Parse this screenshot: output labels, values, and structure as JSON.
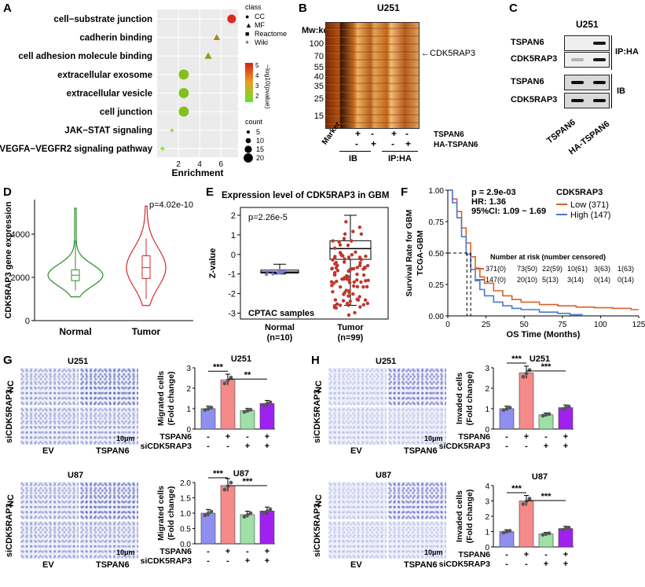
{
  "panels": {
    "A": "A",
    "B": "B",
    "C": "C",
    "D": "D",
    "E": "E",
    "F": "F",
    "G": "G",
    "H": "H"
  },
  "chart_data": [
    {
      "panel": "A",
      "type": "scatter",
      "xlabel": "Enrichment",
      "categories": [
        "cell−substrate junction",
        "cadherin binding",
        "cell adhesion molecule binding",
        "extracellular exosome",
        "extracellular vesicle",
        "cell junction",
        "JAK−STAT signaling",
        "VEGFA−VEGFR2 signaling pathway"
      ],
      "x": [
        7.0,
        5.6,
        4.8,
        2.5,
        2.5,
        2.5,
        1.4,
        0.5
      ],
      "class": [
        "CC",
        "MF",
        "MF",
        "CC",
        "CC",
        "CC",
        "Wiki",
        "Wiki"
      ],
      "count": [
        9,
        6,
        7,
        11,
        11,
        11,
        2,
        4
      ],
      "neg_log10_p": [
        5.6,
        3.0,
        2.4,
        1.5,
        1.5,
        1.5,
        1.2,
        1.0
      ],
      "xticks": [
        "2",
        "4",
        "6"
      ],
      "legend": {
        "class_title": "class",
        "classes": [
          "CC",
          "MF",
          "Reactome",
          "Wiki"
        ],
        "color_title": "−log10(pvalue)",
        "color_ticks": [
          "5",
          "4",
          "3",
          "2"
        ],
        "count_title": "count",
        "count_ticks": [
          "5",
          "10",
          "15",
          "20"
        ]
      }
    },
    {
      "panel": "D",
      "type": "violin",
      "ylabel": "CDK5RAP3 gene expression",
      "categories": [
        "Normal",
        "Tumor"
      ],
      "median": [
        2100,
        2450
      ],
      "q1": [
        1850,
        1950
      ],
      "q3": [
        2350,
        3000
      ],
      "min": [
        1100,
        700
      ],
      "max": [
        5200,
        5300
      ],
      "yticks": [
        "0",
        "2000",
        "4000"
      ],
      "ylim": [
        0,
        5600
      ],
      "annotation": "p=4.02e-10",
      "colors": [
        "#2e8b2e",
        "#d42a2a"
      ]
    },
    {
      "panel": "E",
      "type": "box",
      "title": "Expression level of CDK5RAP3 in GBM",
      "ylabel": "Z-value",
      "categories": [
        "Normal",
        "Tumor"
      ],
      "n_labels": [
        "(n=10)",
        "(n=99)"
      ],
      "median": [
        -0.9,
        0.3
      ],
      "q1": [
        -0.95,
        -0.25
      ],
      "q3": [
        -0.8,
        0.7
      ],
      "whisker_low": [
        -1.0,
        -2.6
      ],
      "whisker_high": [
        -0.5,
        2.0
      ],
      "yticks": [
        "2",
        "1",
        "0",
        "-1",
        "-2",
        "-3"
      ],
      "ylim": [
        -3.3,
        2.4
      ],
      "annotation": "p=2.26e-5",
      "footer": "CPTAC samples"
    },
    {
      "panel": "F",
      "type": "line",
      "xlabel": "OS Time (Months)",
      "ylabel": "Survival Rate for GBM\nTCGA-GBM",
      "xticks": [
        "0",
        "25",
        "50",
        "75",
        "100",
        "125"
      ],
      "yticks": [
        "0.00",
        "0.25",
        "0.50",
        "0.75",
        "1.00"
      ],
      "xlim": [
        0,
        125
      ],
      "ylim": [
        0,
        1
      ],
      "series": [
        {
          "name": "Low (371)",
          "color": "#d9622b",
          "x": [
            0,
            3,
            6,
            9,
            12,
            15,
            18,
            21,
            24,
            30,
            36,
            42,
            48,
            60,
            72,
            84,
            96,
            108,
            120,
            125
          ],
          "y": [
            1,
            0.93,
            0.83,
            0.7,
            0.58,
            0.47,
            0.38,
            0.31,
            0.26,
            0.2,
            0.16,
            0.13,
            0.11,
            0.09,
            0.08,
            0.07,
            0.065,
            0.06,
            0.05,
            0.05
          ]
        },
        {
          "name": "High (147)",
          "color": "#4c78c9",
          "x": [
            0,
            3,
            6,
            9,
            12,
            15,
            18,
            21,
            24,
            30,
            36,
            42,
            48,
            60,
            72,
            80,
            88
          ],
          "y": [
            1,
            0.9,
            0.78,
            0.63,
            0.49,
            0.37,
            0.28,
            0.21,
            0.16,
            0.11,
            0.08,
            0.06,
            0.05,
            0.03,
            0.02,
            0.01,
            0.0
          ]
        }
      ],
      "legend_title": "CDK5RAP3",
      "stats": [
        "p = 2.9e-03",
        "HR: 1.36",
        "95%CI: 1.09 ~ 1.69"
      ],
      "risk_title": "Number at risk (number censored)",
      "risk_rows": [
        [
          "371(0)",
          "73(50)",
          "22(59)",
          "10(61)",
          "3(63)",
          "1(63)"
        ],
        [
          "147(0)",
          "20(10)",
          "5(13)",
          "3(14)",
          "0(14)",
          "0(14)"
        ]
      ]
    },
    {
      "panel": "G",
      "type": "bar",
      "title": "U251",
      "ylabel": "Migrated cells\n(Fold change)",
      "values": [
        1.0,
        2.4,
        0.9,
        1.25
      ],
      "colors": [
        "#8f8ff0",
        "#f48a8a",
        "#9ee0a6",
        "#a020f0"
      ],
      "ylim": [
        0,
        3
      ],
      "yticks": [
        "0",
        "1",
        "2",
        "3"
      ],
      "sig": [
        "***",
        "**"
      ]
    },
    {
      "panel": "G",
      "type": "bar",
      "title": "U87",
      "ylabel": "Migrated cells\n(Fold change)",
      "values": [
        1.0,
        1.9,
        0.95,
        1.07
      ],
      "colors": [
        "#8f8ff0",
        "#f48a8a",
        "#9ee0a6",
        "#a020f0"
      ],
      "ylim": [
        0,
        2.0
      ],
      "yticks": [
        "0.0",
        "0.5",
        "1.0",
        "1.5",
        "2.0"
      ],
      "sig": [
        "***",
        "***"
      ]
    },
    {
      "panel": "H",
      "type": "bar",
      "title": "U251",
      "ylabel": "Invaded cells\n(Fold change)",
      "values": [
        1.0,
        2.75,
        0.7,
        1.05
      ],
      "colors": [
        "#8f8ff0",
        "#f48a8a",
        "#9ee0a6",
        "#a020f0"
      ],
      "ylim": [
        0,
        3
      ],
      "yticks": [
        "0",
        "1",
        "2",
        "3"
      ],
      "sig": [
        "***",
        "***"
      ]
    },
    {
      "panel": "H",
      "type": "bar",
      "title": "U87",
      "ylabel": "Invaded cells\n(Fold change)",
      "values": [
        1.0,
        3.0,
        0.85,
        1.2
      ],
      "colors": [
        "#8f8ff0",
        "#f48a8a",
        "#9ee0a6",
        "#a020f0"
      ],
      "ylim": [
        0,
        4
      ],
      "yticks": [
        "0",
        "1",
        "2",
        "3",
        "4"
      ],
      "sig": [
        "***",
        "***"
      ]
    }
  ],
  "B": {
    "cell": "U251",
    "mw_title": "Mw:kd",
    "mw": [
      "100",
      "70",
      "55",
      "40",
      "35",
      "25",
      "15"
    ],
    "arrow_label": "CDK5RAP3",
    "marker": "Marker",
    "row1_label": "TSPAN6",
    "row1": [
      "+",
      "-",
      "+",
      "-"
    ],
    "row2_label": "HA-TSPAN6",
    "row2": [
      "-",
      "+",
      "-",
      "+"
    ],
    "groups": [
      "IB",
      "IP:HA"
    ]
  },
  "C": {
    "cell": "U251",
    "rows": [
      "TSPAN6",
      "CDK5RAP3",
      "TSPAN6",
      "CDK5RAP3"
    ],
    "groups": [
      "IP:HA",
      "IB"
    ],
    "lanes": [
      "TSPAN6",
      "HA-TSPAN6"
    ]
  },
  "G": {
    "cells": [
      "U251",
      "U87"
    ],
    "row_labels": [
      "NC",
      "siCDK5RAP3"
    ],
    "col_labels": [
      "EV",
      "TSPAN6"
    ],
    "scale": "10μm"
  },
  "H": {
    "cells": [
      "U251",
      "U87"
    ],
    "row_labels": [
      "NC",
      "siCDK5RAP3"
    ],
    "col_labels": [
      "EV",
      "TSPAN6"
    ],
    "scale": "10μm"
  },
  "bar_axis": {
    "row1_label": "TSPAN6",
    "row1": [
      "-",
      "+",
      "-",
      "+"
    ],
    "row2_label": "siCDK5RAP3",
    "row2": [
      "-",
      "-",
      "+",
      "+"
    ]
  }
}
